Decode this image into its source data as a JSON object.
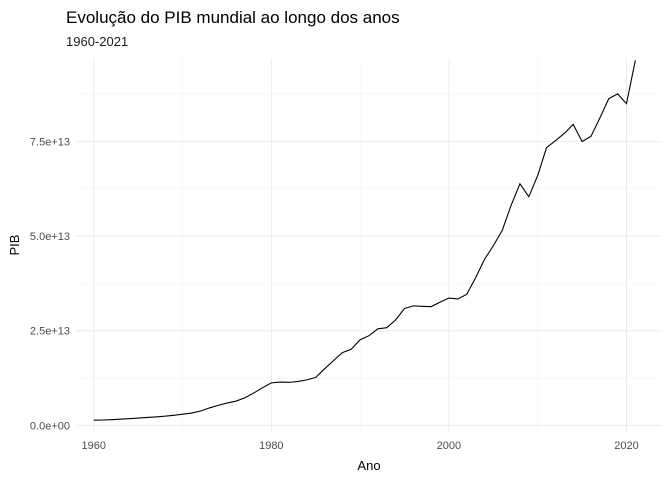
{
  "chart_data": {
    "type": "line",
    "title": "Evolução do PIB mundial ao longo dos anos",
    "subtitle": "1960-2021",
    "xlabel": "Ano",
    "ylabel": "PIB",
    "xlim": [
      1958,
      2024
    ],
    "ylim": [
      -2000000000000.0,
      97000000000000.0
    ],
    "x_ticks": [
      1960,
      1980,
      2000,
      2020
    ],
    "x_minor_ticks": [
      1970,
      1990,
      2010
    ],
    "y_ticks": [
      0,
      25000000000000.0,
      50000000000000.0,
      75000000000000.0
    ],
    "y_tick_labels": [
      "0.0e+00",
      "2.5e+13",
      "5.0e+13",
      "7.5e+13"
    ],
    "y_minor_ticks": [
      12500000000000.0,
      37500000000000.0,
      62500000000000.0,
      87500000000000.0
    ],
    "grid": true,
    "legend": "none",
    "series": [
      {
        "color": "#000000",
        "x": [
          1960,
          1961,
          1962,
          1963,
          1964,
          1965,
          1966,
          1967,
          1968,
          1969,
          1970,
          1971,
          1972,
          1973,
          1974,
          1975,
          1976,
          1977,
          1978,
          1979,
          1980,
          1981,
          1982,
          1983,
          1984,
          1985,
          1986,
          1987,
          1988,
          1989,
          1990,
          1991,
          1992,
          1993,
          1994,
          1995,
          1996,
          1997,
          1998,
          1999,
          2000,
          2001,
          2002,
          2003,
          2004,
          2005,
          2006,
          2007,
          2008,
          2009,
          2010,
          2011,
          2012,
          2013,
          2014,
          2015,
          2016,
          2017,
          2018,
          2019,
          2020,
          2021
        ],
        "values": [
          1370000000000.0,
          1430000000000.0,
          1520000000000.0,
          1640000000000.0,
          1790000000000.0,
          1950000000000.0,
          2110000000000.0,
          2250000000000.0,
          2430000000000.0,
          2670000000000.0,
          2960000000000.0,
          3260000000000.0,
          3770000000000.0,
          4590000000000.0,
          5300000000000.0,
          5900000000000.0,
          6400000000000.0,
          7260000000000.0,
          8540000000000.0,
          9930000000000.0,
          11230000000000.0,
          11460000000000.0,
          11370000000000.0,
          11610000000000.0,
          12020000000000.0,
          12670000000000.0,
          14950000000000.0,
          17100000000000.0,
          19230000000000.0,
          20100000000000.0,
          22620000000000.0,
          23690000000000.0,
          25500000000000.0,
          25800000000000.0,
          27860000000000.0,
          30870000000000.0,
          31560000000000.0,
          31440000000000.0,
          31350000000000.0,
          32560000000000.0,
          33630000000000.0,
          33390000000000.0,
          34600000000000.0,
          38940000000000.0,
          43810000000000.0,
          47430000000000.0,
          51450000000000.0,
          58070000000000.0,
          63780000000000.0,
          60360000000000.0,
          66000000000000.0,
          73340000000000.0,
          75160000000000.0,
          77110000000000.0,
          79450000000000.0,
          74960000000000.0,
          76300000000000.0,
          81160000000000.0,
          86250000000000.0,
          87530000000000.0,
          84970000000000.0,
          96400000000000.0
        ]
      }
    ]
  }
}
